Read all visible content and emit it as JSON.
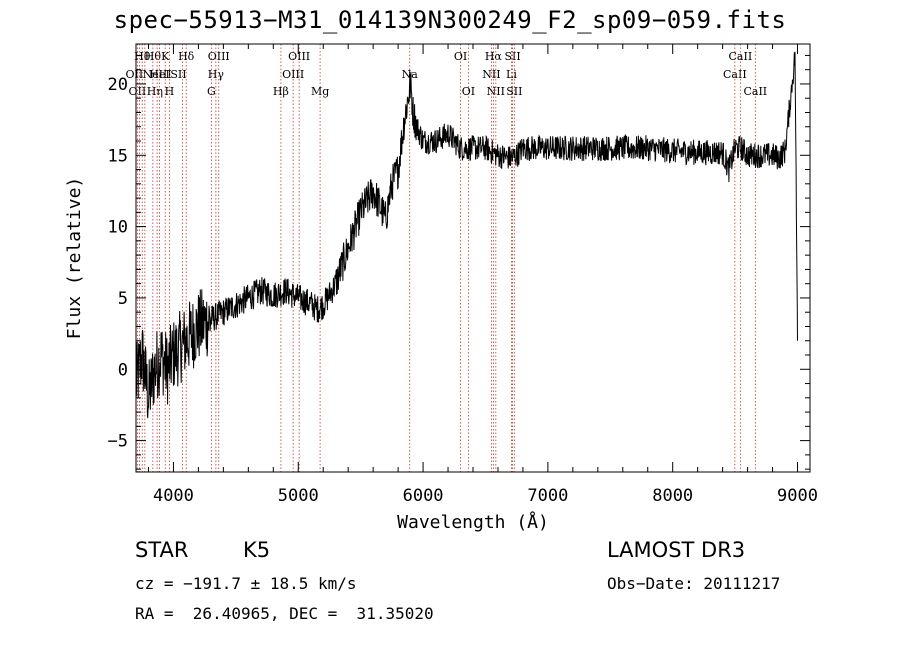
{
  "chart_data": {
    "type": "line",
    "title": "spec−55913−M31_014139N300249_F2_sp09−059.fits",
    "xlabel": "Wavelength (Å)",
    "ylabel": "Flux (relative)",
    "xlim": [
      3700,
      9100
    ],
    "ylim": [
      -7.2,
      22.8
    ],
    "xticks": [
      4000,
      5000,
      6000,
      7000,
      8000,
      9000
    ],
    "yticks": [
      -5,
      0,
      5,
      10,
      15,
      20
    ],
    "grid": false,
    "series": [
      {
        "color": "#000000",
        "x": [
          3700,
          3750,
          3800,
          3850,
          3900,
          3950,
          4000,
          4050,
          4100,
          4150,
          4200,
          4300,
          4400,
          4500,
          4600,
          4700,
          4800,
          4900,
          5000,
          5100,
          5150,
          5200,
          5300,
          5400,
          5500,
          5600,
          5700,
          5750,
          5800,
          5850,
          5880,
          5900,
          5920,
          5950,
          6000,
          6100,
          6200,
          6300,
          6400,
          6500,
          6600,
          6700,
          6750,
          6800,
          6900,
          7000,
          7200,
          7400,
          7600,
          7800,
          8000,
          8200,
          8400,
          8450,
          8500,
          8550,
          8600,
          8700,
          8800,
          8850,
          8900,
          8950,
          8980,
          9000
        ],
        "y": [
          -1,
          1,
          -2,
          0,
          1,
          0,
          1,
          1.5,
          2,
          2.5,
          3,
          3.5,
          4,
          4.5,
          5,
          5.5,
          5.2,
          5.5,
          5,
          4.6,
          4.2,
          4.5,
          6,
          8.5,
          11,
          12.5,
          10.5,
          13,
          14,
          17.5,
          19,
          20,
          18,
          17,
          16,
          16,
          16.5,
          15.5,
          15.5,
          15.5,
          15,
          14.8,
          15,
          15.5,
          15.5,
          15.5,
          15.5,
          15.5,
          15.5,
          15.5,
          15.3,
          15.2,
          15.2,
          14,
          15.5,
          15.5,
          15,
          15,
          15,
          14.8,
          15.3,
          19.5,
          22,
          2
        ]
      }
    ],
    "lines": [
      {
        "x": 3711,
        "label": "OII",
        "row": 2,
        "dx": 0
      },
      {
        "x": 3727,
        "label": "OII",
        "row": 1,
        "dx": -5
      },
      {
        "x": 3750,
        "label": "Hθ",
        "row": 0,
        "dx": 0
      },
      {
        "x": 3771,
        "label": "Hη",
        "row": 2,
        "dx": 10
      },
      {
        "x": 3835,
        "label": "Hθ",
        "row": 0,
        "dx": 0
      },
      {
        "x": 3869,
        "label": "NeIII",
        "row": 1,
        "dx": 0
      },
      {
        "x": 3889,
        "label": "HeI",
        "row": 1,
        "dx": 0
      },
      {
        "x": 3934,
        "label": "K",
        "row": 0,
        "dx": 0
      },
      {
        "x": 3968,
        "label": "H",
        "row": 2,
        "dx": 0
      },
      {
        "x": 4072,
        "label": "SII",
        "row": 1,
        "dx": -4
      },
      {
        "x": 4102,
        "label": "Hδ",
        "row": 0,
        "dx": 0
      },
      {
        "x": 4304,
        "label": "G",
        "row": 2,
        "dx": 0
      },
      {
        "x": 4340,
        "label": "Hγ",
        "row": 1,
        "dx": 0
      },
      {
        "x": 4363,
        "label": "OIII",
        "row": 0,
        "dx": 0
      },
      {
        "x": 4861,
        "label": "Hβ",
        "row": 2,
        "dx": 0
      },
      {
        "x": 4959,
        "label": "OIII",
        "row": 1,
        "dx": 0
      },
      {
        "x": 5007,
        "label": "OIII",
        "row": 0,
        "dx": 0
      },
      {
        "x": 5175,
        "label": "Mg",
        "row": 2,
        "dx": 0
      },
      {
        "x": 5893,
        "label": "Na",
        "row": 1,
        "dx": 0
      },
      {
        "x": 6300,
        "label": "OI",
        "row": 0,
        "dx": 0
      },
      {
        "x": 6363,
        "label": "OI",
        "row": 2,
        "dx": 0
      },
      {
        "x": 6548,
        "label": "NII",
        "row": 1,
        "dx": 0
      },
      {
        "x": 6563,
        "label": "Hα",
        "row": 0,
        "dx": 0
      },
      {
        "x": 6583,
        "label": "NII",
        "row": 2,
        "dx": 0
      },
      {
        "x": 6708,
        "label": "Li",
        "row": 1,
        "dx": 0
      },
      {
        "x": 6717,
        "label": "SII",
        "row": 0,
        "dx": 0
      },
      {
        "x": 6731,
        "label": "SII",
        "row": 2,
        "dx": 0
      },
      {
        "x": 8498,
        "label": "CaII",
        "row": 1,
        "dx": 0
      },
      {
        "x": 8542,
        "label": "CaII",
        "row": 0,
        "dx": 0
      },
      {
        "x": 8662,
        "label": "CaII",
        "row": 2,
        "dx": 0
      }
    ]
  },
  "footer": {
    "class_label": "STAR",
    "subclass": "K5",
    "survey": "LAMOST DR3",
    "cz": "cz = −191.7 ± 18.5 km/s",
    "obs_date": "Obs−Date: 20111217",
    "radec": "RA =  26.40965, DEC =  31.35020"
  }
}
